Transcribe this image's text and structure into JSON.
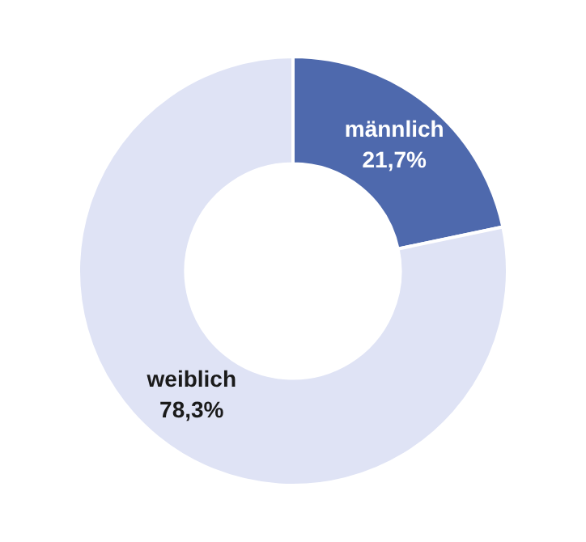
{
  "chart_data": {
    "type": "donut",
    "categories": [
      "männlich",
      "weiblich"
    ],
    "values": [
      21.7,
      78.3
    ],
    "colors": [
      "#4e69ad",
      "#dfe3f5"
    ],
    "value_labels": [
      "21,7%",
      "78,3%"
    ],
    "legend": false
  }
}
